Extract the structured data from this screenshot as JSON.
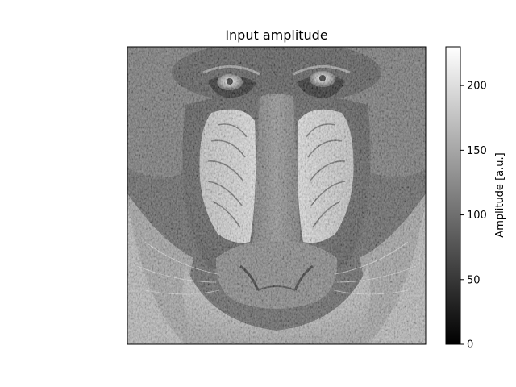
{
  "chart_data": {
    "type": "heatmap",
    "title": "Input amplitude",
    "xlabel": "",
    "ylabel": "",
    "image": {
      "name": "grayscale-amplitude-image",
      "content": "grayscale image of a mandrill face",
      "axis_ticks_visible": false
    },
    "colorbar": {
      "label": "Amplitude [a.u.]",
      "colormap": "gray",
      "vmin": 0,
      "vmax": 230,
      "ticks": [
        0,
        50,
        100,
        150,
        200
      ],
      "position": "right"
    },
    "grid": false
  },
  "colors": {
    "background": "#ffffff",
    "frame": "#000000",
    "cmap_low": "#000000",
    "cmap_high": "#ffffff"
  }
}
